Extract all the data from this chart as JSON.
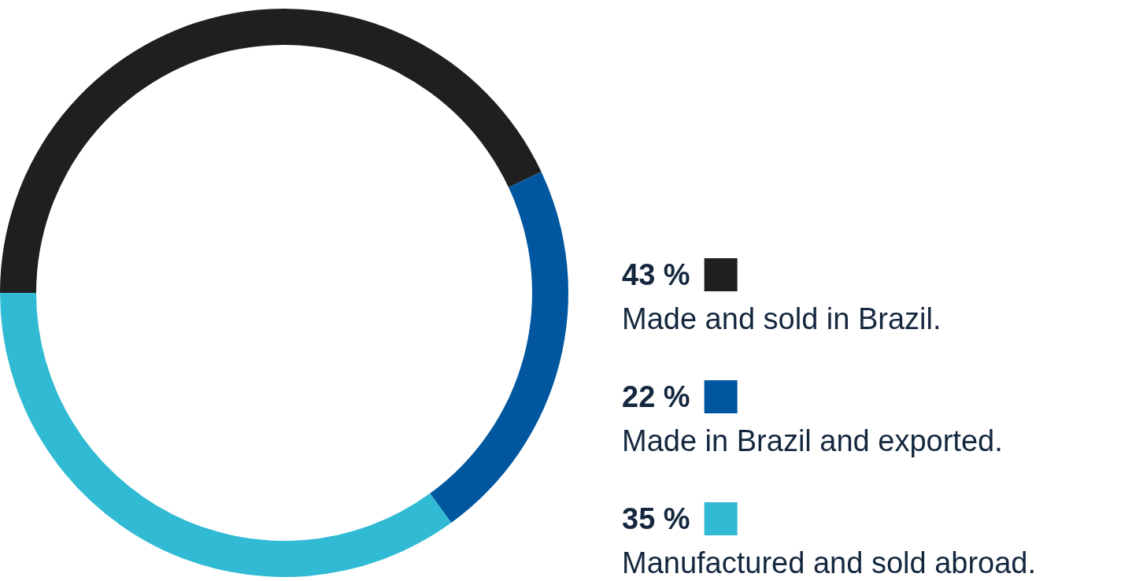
{
  "chart_data": {
    "type": "donut",
    "categories": [
      "Made and sold in Brazil.",
      "Made in Brazil and exported.",
      "Manufactured and sold abroad."
    ],
    "values": [
      43,
      22,
      35
    ],
    "colors": [
      "#1f1f1f",
      "#0057a0",
      "#31bad3"
    ],
    "value_labels": [
      "43 %",
      "22 %",
      "35 %"
    ],
    "legend": "right"
  }
}
